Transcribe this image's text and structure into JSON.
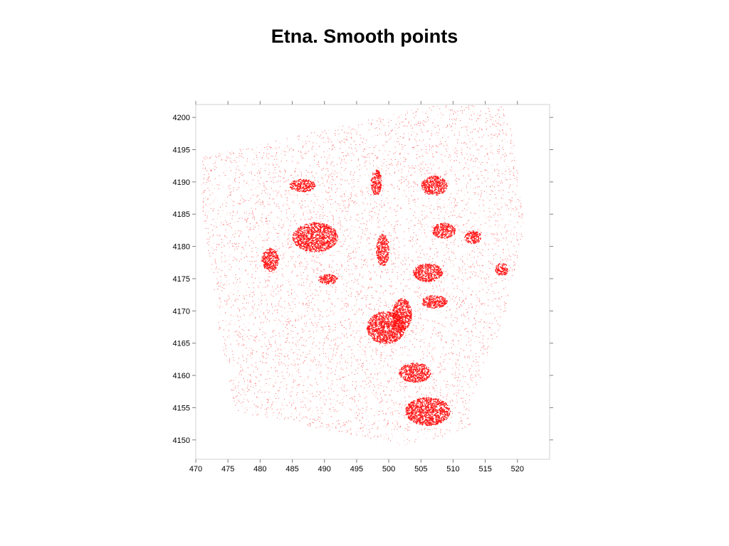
{
  "chart_data": {
    "type": "scatter",
    "title": "Etna. Smooth points",
    "xlabel": "",
    "ylabel": "",
    "xlim": [
      470,
      525
    ],
    "ylim": [
      4147,
      4202
    ],
    "xticks": [
      470,
      475,
      480,
      485,
      490,
      495,
      500,
      505,
      510,
      515,
      520
    ],
    "yticks": [
      4150,
      4155,
      4160,
      4165,
      4170,
      4175,
      4180,
      4185,
      4190,
      4195,
      4200
    ],
    "grid": false,
    "legend": "none",
    "point_color": "#ff0000",
    "coverage_polygon": [
      [
        470.6,
        4193.8
      ],
      [
        506.5,
        4201.9
      ],
      [
        517.5,
        4201.9
      ],
      [
        519.0,
        4198.5
      ],
      [
        520.0,
        4192.0
      ],
      [
        521.0,
        4183.0
      ],
      [
        519.5,
        4175.5
      ],
      [
        517.5,
        4167.5
      ],
      [
        514.5,
        4161.0
      ],
      [
        512.5,
        4152.0
      ],
      [
        510.0,
        4151.0
      ],
      [
        502.0,
        4149.0
      ],
      [
        498.0,
        4150.0
      ],
      [
        476.0,
        4154.5
      ],
      [
        475.0,
        4160.5
      ],
      [
        473.5,
        4167.0
      ],
      [
        473.0,
        4171.5
      ],
      [
        472.5,
        4175.5
      ],
      [
        472.0,
        4178.5
      ],
      [
        471.0,
        4186.0
      ],
      [
        470.6,
        4193.8
      ]
    ],
    "dense_clusters": [
      {
        "x": 488.5,
        "y": 4181.5,
        "rx": 3.5,
        "ry": 2.3
      },
      {
        "x": 499.5,
        "y": 4167.5,
        "rx": 3.0,
        "ry": 2.5
      },
      {
        "x": 506.0,
        "y": 4176.0,
        "rx": 2.3,
        "ry": 1.4
      },
      {
        "x": 507.0,
        "y": 4171.5,
        "rx": 2.0,
        "ry": 1.0
      },
      {
        "x": 502.0,
        "y": 4169.5,
        "rx": 1.5,
        "ry": 2.5
      },
      {
        "x": 506.0,
        "y": 4154.5,
        "rx": 3.5,
        "ry": 2.2
      },
      {
        "x": 507.0,
        "y": 4189.5,
        "rx": 2.0,
        "ry": 1.5
      },
      {
        "x": 508.5,
        "y": 4182.5,
        "rx": 1.8,
        "ry": 1.2
      },
      {
        "x": 513.0,
        "y": 4181.5,
        "rx": 1.3,
        "ry": 1.0
      },
      {
        "x": 486.5,
        "y": 4189.5,
        "rx": 2.0,
        "ry": 1.0
      },
      {
        "x": 498.0,
        "y": 4190.0,
        "rx": 0.8,
        "ry": 2.0
      },
      {
        "x": 499.0,
        "y": 4179.5,
        "rx": 1.0,
        "ry": 2.5
      },
      {
        "x": 481.5,
        "y": 4178.0,
        "rx": 1.3,
        "ry": 1.8
      },
      {
        "x": 490.5,
        "y": 4175.0,
        "rx": 1.5,
        "ry": 0.8
      },
      {
        "x": 517.5,
        "y": 4176.5,
        "rx": 1.0,
        "ry": 1.0
      },
      {
        "x": 504.0,
        "y": 4160.5,
        "rx": 2.5,
        "ry": 1.5
      }
    ]
  }
}
